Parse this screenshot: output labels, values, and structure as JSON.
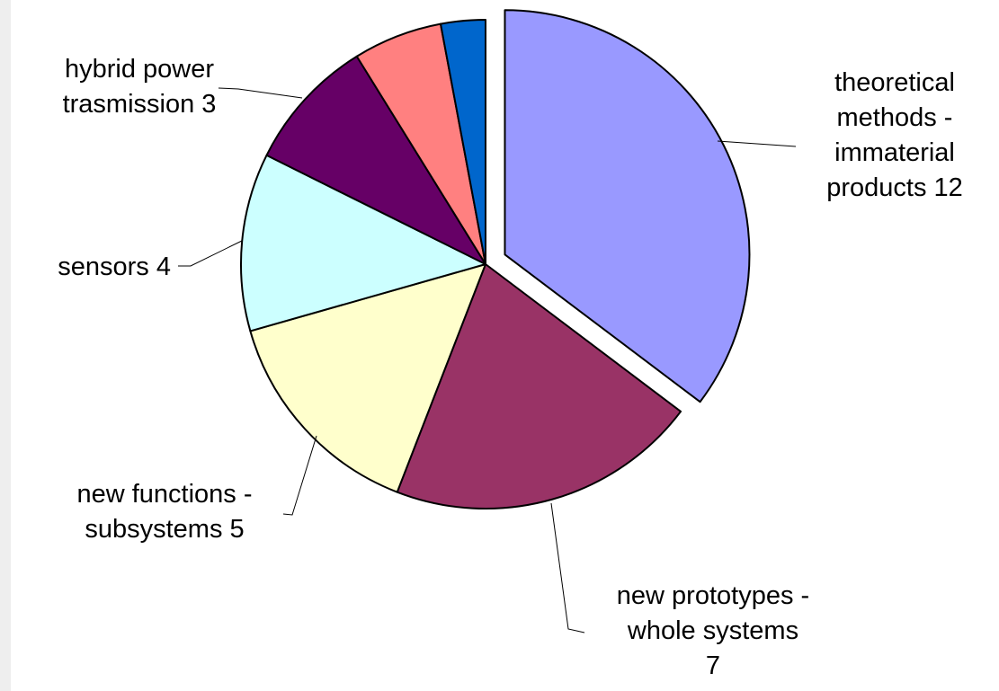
{
  "chart_data": {
    "type": "pie",
    "title": "",
    "slices": [
      {
        "label_lines": [
          "theoretical",
          "methods -",
          "immaterial",
          "products 12"
        ],
        "value": 12,
        "color": "#9999ff",
        "exploded": true
      },
      {
        "label_lines": [
          "new prototypes -",
          "whole systems",
          "7"
        ],
        "value": 7,
        "color": "#993366",
        "exploded": false
      },
      {
        "label_lines": [
          "new functions -",
          "subsystems 5"
        ],
        "value": 5,
        "color": "#ffffcc",
        "exploded": false
      },
      {
        "label_lines": [
          "sensors 4"
        ],
        "value": 4,
        "color": "#ccffff",
        "exploded": false
      },
      {
        "label_lines": [
          "hybrid power",
          "trasmission 3"
        ],
        "value": 3,
        "color": "#660066",
        "exploded": false
      },
      {
        "label_lines": [
          ""
        ],
        "value": 2,
        "color": "#ff8080",
        "exploded": false
      },
      {
        "label_lines": [
          ""
        ],
        "value": 1,
        "color": "#0066cc",
        "exploded": false
      }
    ],
    "legend": "none",
    "grid": false
  }
}
